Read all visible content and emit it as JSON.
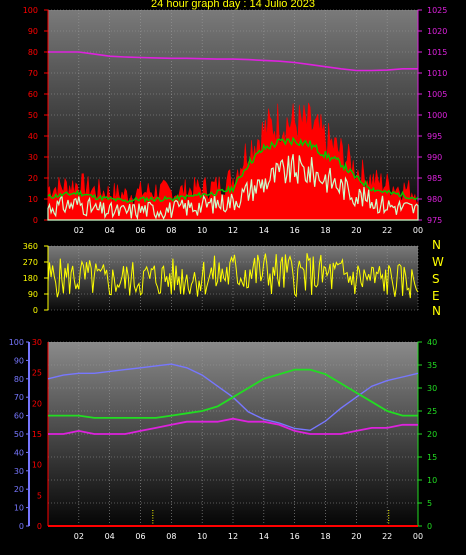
{
  "title": "24 hour graph day : 14 Julio 2023",
  "colors": {
    "temp_max": "#ff0000",
    "temp_avg": "#00cc00",
    "temp_min": "#ccffcc",
    "pressure": "#dd22dd",
    "wind_dir": "#ffff00",
    "humidity": "#7777ff",
    "dewpoint": "#dd22dd",
    "temp2": "#22dd22",
    "rain": "#ff0000",
    "title": "#ffff00",
    "left_axis_red": "#ff0000",
    "right_axis_magenta": "#dd22dd",
    "green_axis": "#22dd22",
    "blue_axis": "#7777ff",
    "compass_text": "#ffff00"
  },
  "compass": [
    "N",
    "W",
    "S",
    "E",
    "N"
  ],
  "chart_data": [
    {
      "type": "area",
      "y_left": {
        "ticks": [
          0,
          10,
          20,
          30,
          40,
          50,
          60,
          70,
          80,
          90,
          100
        ],
        "range": [
          0,
          100
        ]
      },
      "y_right": {
        "ticks": [
          975,
          980,
          985,
          990,
          995,
          1000,
          1005,
          1010,
          1015,
          1020,
          1025
        ],
        "range": [
          975,
          1025
        ]
      },
      "x_ticks": [
        "02",
        "04",
        "06",
        "08",
        "10",
        "12",
        "14",
        "16",
        "18",
        "20",
        "22",
        "00"
      ],
      "grid": true,
      "series": [
        {
          "key": "gust",
          "x": [
            0,
            1,
            2,
            3,
            4,
            5,
            6,
            7,
            8,
            9,
            10,
            11,
            12,
            13,
            14,
            15,
            16,
            17,
            18,
            19,
            20,
            21,
            22,
            23,
            24
          ],
          "values": [
            15,
            16,
            17,
            14,
            13,
            12,
            13,
            14,
            13,
            14,
            15,
            16,
            20,
            34,
            42,
            47,
            46,
            45,
            38,
            32,
            24,
            19,
            17,
            15,
            13
          ]
        },
        {
          "key": "wind_avg",
          "x": [
            0,
            1,
            2,
            3,
            4,
            5,
            6,
            7,
            8,
            9,
            10,
            11,
            12,
            13,
            14,
            15,
            16,
            17,
            18,
            19,
            20,
            21,
            22,
            23,
            24
          ],
          "values": [
            11,
            12,
            13,
            11,
            10,
            9,
            10,
            10,
            10,
            11,
            12,
            13,
            15,
            27,
            34,
            37,
            38,
            36,
            31,
            27,
            20,
            15,
            13,
            12,
            10
          ]
        },
        {
          "key": "wind_min",
          "x": [
            0,
            1,
            2,
            3,
            4,
            5,
            6,
            7,
            8,
            9,
            10,
            11,
            12,
            13,
            14,
            15,
            16,
            17,
            18,
            19,
            20,
            21,
            22,
            23,
            24
          ],
          "values": [
            6,
            7,
            8,
            5,
            4,
            4,
            5,
            5,
            5,
            6,
            7,
            8,
            9,
            14,
            18,
            22,
            24,
            23,
            20,
            16,
            12,
            9,
            7,
            6,
            5
          ]
        },
        {
          "key": "pressure",
          "axis": "right",
          "x": [
            0,
            1,
            2,
            3,
            4,
            5,
            6,
            7,
            8,
            9,
            10,
            11,
            12,
            13,
            14,
            15,
            16,
            17,
            18,
            19,
            20,
            21,
            22,
            23,
            24
          ],
          "values": [
            1015,
            1015,
            1015,
            1014.5,
            1014,
            1013.8,
            1013.7,
            1013.6,
            1013.5,
            1013.5,
            1013.4,
            1013.3,
            1013.3,
            1013.2,
            1013,
            1012.8,
            1012.5,
            1012,
            1011.5,
            1011,
            1010.6,
            1010.6,
            1010.7,
            1011,
            1011
          ]
        }
      ]
    },
    {
      "type": "line",
      "y_ticks": [
        0,
        90,
        180,
        270,
        360
      ],
      "range": [
        0,
        360
      ],
      "grid": true,
      "series": [
        {
          "key": "wind_direction",
          "x": [
            0,
            1,
            2,
            3,
            4,
            5,
            6,
            7,
            8,
            9,
            10,
            11,
            12,
            13,
            14,
            15,
            16,
            17,
            18,
            19,
            20,
            21,
            22,
            23,
            24
          ],
          "values": [
            180,
            180,
            185,
            175,
            160,
            170,
            175,
            178,
            180,
            180,
            185,
            195,
            210,
            215,
            210,
            205,
            200,
            200,
            195,
            190,
            180,
            175,
            170,
            160,
            150
          ]
        }
      ]
    },
    {
      "type": "line",
      "y_left_blue": {
        "ticks": [
          0,
          10,
          20,
          30,
          40,
          50,
          60,
          70,
          80,
          90,
          100
        ],
        "range": [
          0,
          100
        ]
      },
      "y_left_red": {
        "ticks": [
          0,
          5,
          10,
          15,
          20,
          25,
          30
        ],
        "range": [
          0,
          30
        ]
      },
      "y_right_green": {
        "ticks": [
          0,
          5,
          10,
          15,
          20,
          25,
          30,
          35,
          40
        ],
        "range": [
          0,
          40
        ]
      },
      "x_ticks": [
        "02",
        "04",
        "06",
        "08",
        "10",
        "12",
        "14",
        "16",
        "18",
        "20",
        "22",
        "00"
      ],
      "grid": true,
      "series": [
        {
          "key": "humidity",
          "axis": "blue",
          "x": [
            0,
            1,
            2,
            3,
            4,
            5,
            6,
            7,
            8,
            9,
            10,
            11,
            12,
            13,
            14,
            15,
            16,
            17,
            18,
            19,
            20,
            21,
            22,
            23,
            24
          ],
          "values": [
            80,
            82,
            83,
            83,
            84,
            85,
            86,
            87,
            88,
            86,
            82,
            76,
            70,
            62,
            58,
            56,
            53,
            52,
            57,
            64,
            70,
            76,
            79,
            81,
            83
          ]
        },
        {
          "key": "temperature",
          "axis": "green",
          "x": [
            0,
            1,
            2,
            3,
            4,
            5,
            6,
            7,
            8,
            9,
            10,
            11,
            12,
            13,
            14,
            15,
            16,
            17,
            18,
            19,
            20,
            21,
            22,
            23,
            24
          ],
          "values": [
            24,
            24,
            24,
            23.5,
            23.5,
            23.5,
            23.5,
            23.5,
            24,
            24.5,
            25,
            26,
            28,
            30,
            32,
            33,
            34,
            34,
            33,
            31,
            29,
            27,
            25,
            24,
            24
          ]
        },
        {
          "key": "dew_point",
          "axis": "red",
          "x": [
            0,
            1,
            2,
            3,
            4,
            5,
            6,
            7,
            8,
            9,
            10,
            11,
            12,
            13,
            14,
            15,
            16,
            17,
            18,
            19,
            20,
            21,
            22,
            23,
            24
          ],
          "values": [
            15,
            15,
            15.5,
            15,
            15,
            15,
            15.5,
            16,
            16.5,
            17,
            17,
            17,
            17.5,
            17,
            17,
            16.5,
            15.5,
            15,
            15,
            15,
            15.5,
            16,
            16,
            16.5,
            16.5
          ]
        },
        {
          "key": "rain",
          "axis": "red",
          "x": [
            0,
            24
          ],
          "values": [
            0,
            0
          ]
        }
      ]
    }
  ]
}
